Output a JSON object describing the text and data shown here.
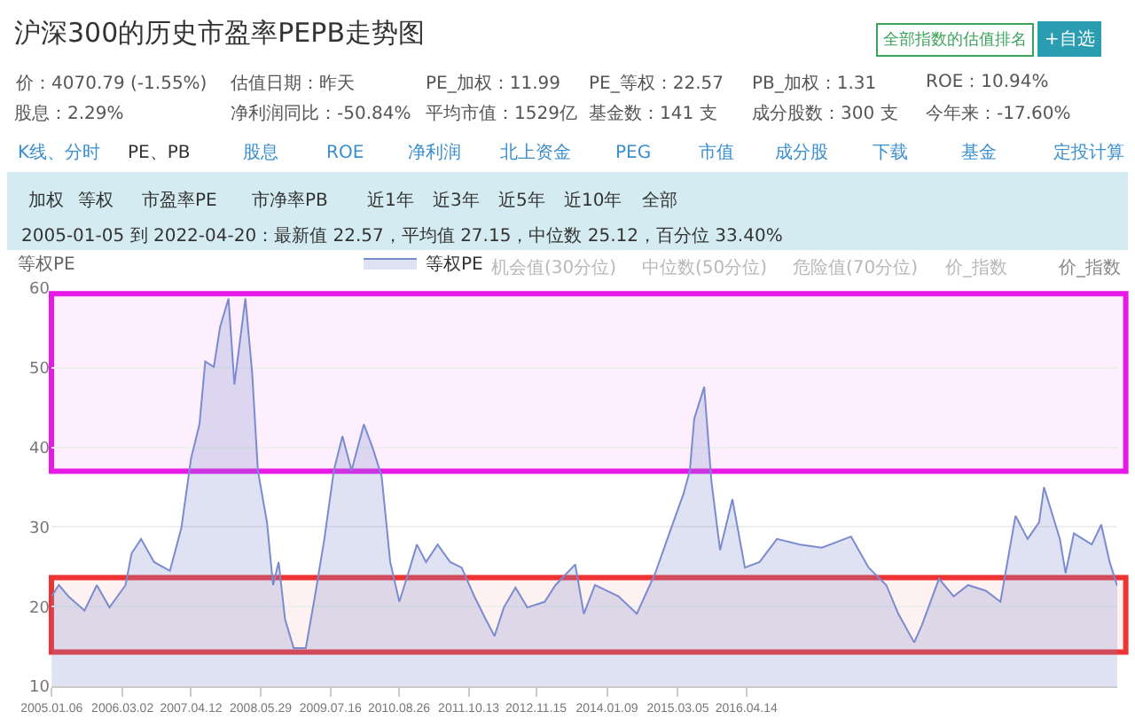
{
  "chart_data": {
    "type": "area",
    "title": "沪深300的历史市盈率PEPB走势图",
    "ylabel": "等权PE",
    "annotations": [
      "全部指数的估值排名",
      "+自选",
      "价：4070.79 (-1.55%)",
      "估值日期：昨天",
      "PE_加权：11.99",
      "PE_等权：22.57",
      "PB_加权：1.31",
      "ROE：10.94%",
      "股息：2.29%",
      "净利润同比：-50.84%",
      "平均市值：1529亿",
      "基金数：141 支",
      "成分股数：300 支",
      "今年来：-17.60%",
      "K线、分时",
      "PE、PB",
      "股息",
      "ROE",
      "净利润",
      "北上资金",
      "PEG",
      "市值",
      "成分股",
      "下载",
      "基金",
      "定投计算",
      "加权",
      "等权",
      "市盈率PE",
      "市净率PB",
      "近1年",
      "近3年",
      "近5年",
      "近10年",
      "全部",
      "2005-01-05 到 2022-04-20：最新值 22.57，平均值 27.15，中位数 25.12，百分位 33.40%",
      "机会值(30分位)",
      "中位数(50分位)",
      "危险值(70分位)",
      "价_指数",
      "价_指数"
    ],
    "x": [
      "2005-01-06",
      "2005-02-18",
      "2005-04-15",
      "2005-07-20",
      "2005-10-01",
      "2005-12-15",
      "2006-03-20",
      "2006-04-25",
      "2006-06-20",
      "2006-09-05",
      "2006-12-08",
      "2007-02-14",
      "2007-04-12",
      "2007-06-01",
      "2007-07-05",
      "2007-08-25",
      "2007-10-01",
      "2007-11-20",
      "2007-12-25",
      "2008-02-28",
      "2008-04-08",
      "2008-05-12",
      "2008-07-05",
      "2008-08-10",
      "2008-09-12",
      "2008-10-20",
      "2008-12-10",
      "2009-02-20",
      "2009-04-15",
      "2009-06-10",
      "2009-08-05",
      "2009-09-25",
      "2009-11-18",
      "2010-01-30",
      "2010-03-22",
      "2010-05-15",
      "2010-07-05",
      "2010-08-28",
      "2010-10-20",
      "2010-12-10",
      "2011-02-02",
      "2011-04-12",
      "2011-06-25",
      "2011-09-01",
      "2011-11-15",
      "2012-01-22",
      "2012-03-14",
      "2012-05-08",
      "2012-07-16",
      "2012-09-24",
      "2013-01-05",
      "2013-03-10",
      "2013-07-05",
      "2013-08-25",
      "2013-10-30",
      "2014-03-18",
      "2014-07-05",
      "2014-10-22",
      "2015-01-25",
      "2015-04-08",
      "2015-05-15",
      "2015-06-10",
      "2015-08-08",
      "2015-09-20",
      "2015-11-10",
      "2016-01-22",
      "2016-04-05",
      "2016-07-01",
      "2016-10-12",
      "2017-02-25",
      "2017-07-05",
      "2017-12-25",
      "2018-04-08",
      "2018-07-22",
      "2018-10-01",
      "2019-01-03",
      "2019-02-18",
      "2019-05-30",
      "2019-08-25",
      "2019-11-18",
      "2020-03-02",
      "2020-05-28",
      "2020-08-25",
      "2020-11-05",
      "2021-01-12",
      "2021-02-10",
      "2021-05-15",
      "2021-06-18",
      "2021-08-06",
      "2021-11-20",
      "2022-01-15",
      "2022-03-06",
      "2022-04-20"
    ],
    "series": [
      {
        "name": "等权PE",
        "color": "#7b8bd0",
        "values": [
          21.3,
          22.7,
          21.3,
          19.5,
          22.7,
          19.9,
          22.7,
          26.7,
          28.5,
          25.6,
          24.5,
          29.9,
          38.6,
          42.9,
          50.8,
          50.1,
          55.1,
          58.7,
          47.9,
          58.7,
          49.4,
          37.1,
          30.6,
          22.7,
          25.6,
          18.4,
          14.8,
          14.8,
          21.3,
          28.5,
          37.1,
          41.4,
          37.1,
          42.9,
          40.0,
          36.4,
          25.6,
          20.6,
          24.2,
          27.8,
          25.6,
          27.8,
          25.6,
          24.9,
          21.3,
          18.4,
          16.3,
          19.9,
          22.4,
          19.9,
          20.6,
          22.7,
          25.3,
          19.1,
          22.7,
          21.3,
          19.1,
          24.2,
          29.9,
          34.2,
          37.1,
          43.6,
          47.6,
          35.7,
          27.1,
          33.5,
          24.9,
          25.6,
          28.5,
          27.8,
          27.4,
          28.8,
          24.9,
          22.7,
          19.1,
          15.5,
          17.7,
          23.5,
          21.3,
          22.7,
          22.0,
          20.6,
          31.4,
          28.5,
          30.6,
          35.0,
          28.5,
          24.2,
          29.2,
          27.8,
          30.3,
          25.6,
          22.6
        ]
      }
    ],
    "xlim": [
      "2005-01-05",
      "2022-04-20"
    ],
    "xticks": [
      {
        "value": "2005-01-06",
        "label": "2005.01.06"
      },
      {
        "value": "2006-03-02",
        "label": "2006.03.02"
      },
      {
        "value": "2007-04-12",
        "label": "2007.04.12"
      },
      {
        "value": "2008-05-29",
        "label": "2008.05.29"
      },
      {
        "value": "2009-07-16",
        "label": "2009.07.16"
      },
      {
        "value": "2010-08-26",
        "label": "2010.08.26"
      },
      {
        "value": "2011-10-13",
        "label": "2011.10.13"
      },
      {
        "value": "2012-11-15",
        "label": "2012.11.15"
      },
      {
        "value": "2014-01-09",
        "label": "2014.01.09"
      },
      {
        "value": "2015-03-05",
        "label": "2015.03.05"
      },
      {
        "value": "2016-04-14",
        "label": "2016.04.14"
      }
    ],
    "ylim": [
      10,
      60
    ],
    "yticks": [
      10,
      20,
      30,
      40,
      50,
      60
    ],
    "grid": "y",
    "legend": "top",
    "marker": "none",
    "line_style": "solid",
    "bands": [
      {
        "axis": "y",
        "from": 37,
        "to": 59.3,
        "color": "#e619e6"
      },
      {
        "axis": "y",
        "from": 14.3,
        "to": 23.65,
        "color": "#ee3333"
      }
    ]
  }
}
